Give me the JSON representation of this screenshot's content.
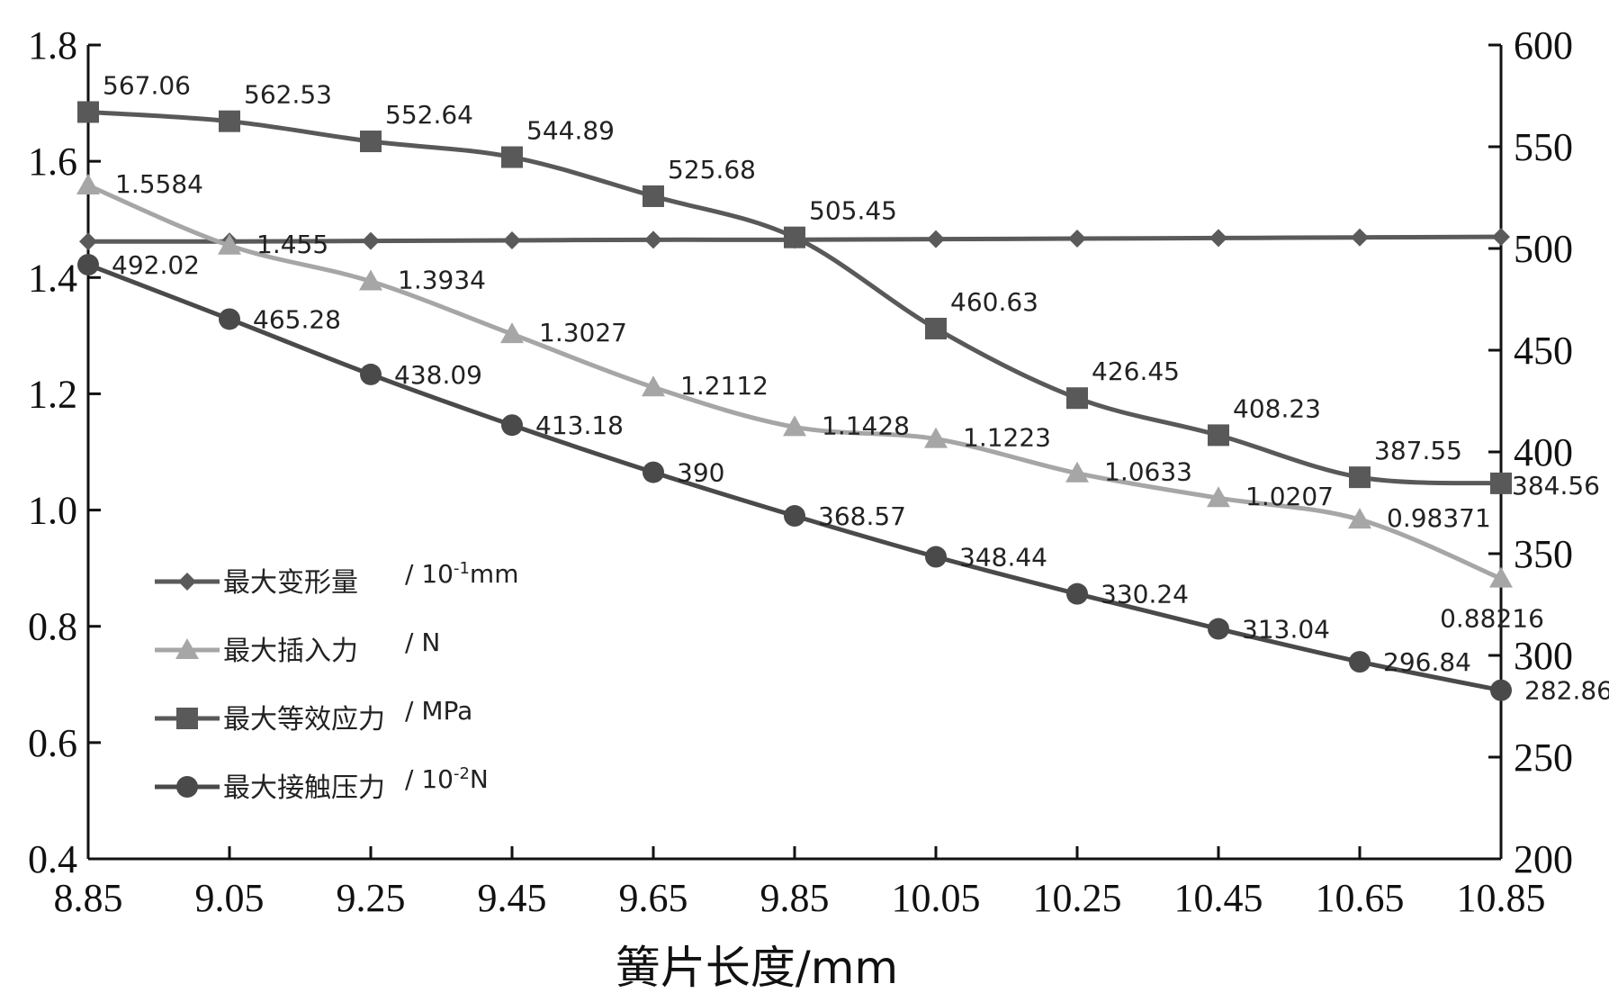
{
  "chart_data": {
    "type": "line",
    "x": [
      8.85,
      9.05,
      9.25,
      9.45,
      9.65,
      9.85,
      10.05,
      10.25,
      10.45,
      10.65,
      10.85
    ],
    "x_tick_labels": [
      "8.85",
      "9.05",
      "9.25",
      "9.45",
      "9.65",
      "9.85",
      "10.05",
      "10.25",
      "10.45",
      "10.65",
      "10.85"
    ],
    "xlabel": "簧片长度/mm",
    "xlim": [
      8.85,
      10.85
    ],
    "y_left": {
      "lim": [
        0.4,
        1.8
      ],
      "ticks": [
        0.4,
        0.6,
        0.8,
        1.0,
        1.2,
        1.4,
        1.6,
        1.8
      ],
      "tick_labels": [
        "0.4",
        "0.6",
        "0.8",
        "1.0",
        "1.2",
        "1.4",
        "1.6",
        "1.8"
      ]
    },
    "y_right": {
      "lim": [
        200,
        600
      ],
      "ticks": [
        200,
        250,
        300,
        350,
        400,
        450,
        500,
        550,
        600
      ],
      "tick_labels": [
        "200",
        "250",
        "300",
        "350",
        "400",
        "450",
        "500",
        "550",
        "600"
      ]
    },
    "series": [
      {
        "name": "最大变形量",
        "unit_prefix": "/ 10",
        "unit_sup": "-1",
        "unit_suffix": "mm",
        "axis": "left",
        "marker": "diamond",
        "color": "#5a5a5a",
        "values": [
          1.462,
          1.462,
          1.463,
          1.464,
          1.465,
          1.465,
          1.466,
          1.467,
          1.468,
          1.469,
          1.47
        ],
        "labels": []
      },
      {
        "name": "最大插入力",
        "unit_prefix": "/ N",
        "unit_sup": "",
        "unit_suffix": "",
        "axis": "left",
        "marker": "triangle",
        "color": "#a6a6a6",
        "values": [
          1.5584,
          1.455,
          1.3934,
          1.3027,
          1.2112,
          1.1428,
          1.1223,
          1.0633,
          1.0207,
          0.98371,
          0.88216
        ],
        "labels": [
          "1.5584",
          "1.455",
          "1.3934",
          "1.3027",
          "1.2112",
          "1.1428",
          "1.1223",
          "1.0633",
          "1.0207",
          "0.98371",
          "0.88216"
        ]
      },
      {
        "name": "最大等效应力",
        "unit_prefix": "/ MPa",
        "unit_sup": "",
        "unit_suffix": "",
        "axis": "right",
        "marker": "square",
        "color": "#595959",
        "values": [
          567.06,
          562.53,
          552.64,
          544.89,
          525.68,
          505.45,
          460.63,
          426.45,
          408.23,
          387.55,
          384.56
        ],
        "labels": [
          "567.06",
          "562.53",
          "552.64",
          "544.89",
          "525.68",
          "505.45",
          "460.63",
          "426.45",
          "408.23",
          "387.55",
          "384.56"
        ]
      },
      {
        "name": "最大接触压力",
        "unit_prefix": "/ 10",
        "unit_sup": "-2",
        "unit_suffix": "N",
        "axis": "right",
        "marker": "circle",
        "color": "#4a4a4a",
        "values": [
          492.02,
          465.28,
          438.09,
          413.18,
          390,
          368.57,
          348.44,
          330.24,
          313.04,
          296.84,
          282.86
        ],
        "labels": [
          "492.02",
          "465.28",
          "438.09",
          "413.18",
          "390",
          "368.57",
          "348.44",
          "330.24",
          "313.04",
          "296.84",
          "282.86"
        ]
      }
    ],
    "legend_position": "lower-left"
  }
}
